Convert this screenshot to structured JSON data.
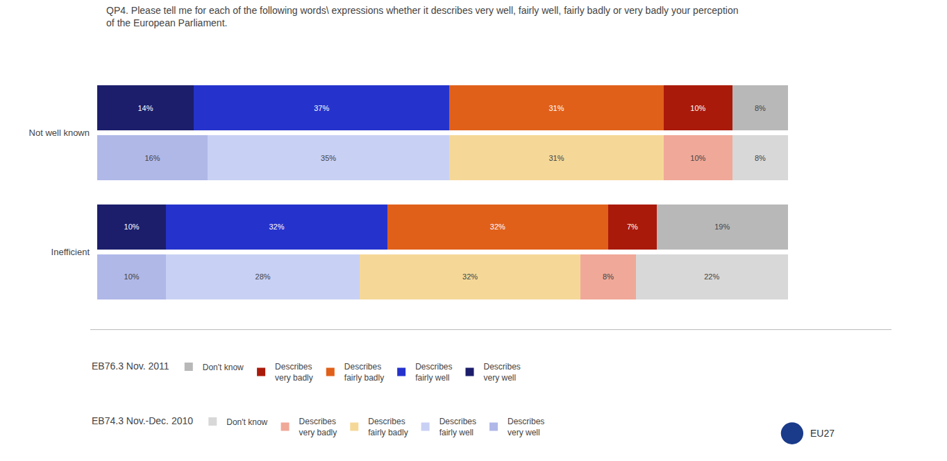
{
  "chart_data": {
    "type": "bar",
    "orientation": "horizontal",
    "stacked": true,
    "data_labels": true,
    "tick_labels": "y",
    "grid": false,
    "legend": "bottom",
    "title": "QP4. Please tell me for each of the following words\\ expressions whether it describes very well, fairly well, fairly badly or very badly your perception\nof the European Parliament.",
    "categories": [
      "Not well known",
      "Inefficient"
    ],
    "xlim": [
      -1,
      115
    ],
    "series": [
      {
        "name": "EB76.3 Nov. 2011",
        "segments": [
          {
            "name": "Describes\nvery well",
            "color": "#1c1e6b",
            "values": [
              14,
              10
            ],
            "value_labels": [
              "14%",
              "10%"
            ]
          },
          {
            "name": "Describes\nfairly well",
            "color": "#2533cc",
            "values": [
              37,
              32
            ],
            "value_labels": [
              "37%",
              "32%"
            ]
          },
          {
            "name": "Describes\nfairly badly",
            "color": "#e0601a",
            "values": [
              31,
              32
            ],
            "value_labels": [
              "31%",
              "32%"
            ]
          },
          {
            "name": "Describes\nvery badly",
            "color": "#aa1a0a",
            "values": [
              10,
              7
            ],
            "value_labels": [
              "10%",
              "7%"
            ]
          },
          {
            "name": "Don't know",
            "color": "#b8b8b8",
            "values": [
              8,
              19
            ],
            "value_labels": [
              "8%",
              "19%"
            ]
          }
        ]
      },
      {
        "name": "EB74.3 Nov.-Dec. 2010",
        "segments": [
          {
            "name": "Describes\nvery well",
            "color": "#b0b8e8",
            "values": [
              16,
              10
            ],
            "value_labels": [
              "16%",
              "10%"
            ]
          },
          {
            "name": "Describes\nfairly well",
            "color": "#c8d0f4",
            "values": [
              35,
              28
            ],
            "value_labels": [
              "35%",
              "28%"
            ]
          },
          {
            "name": "Describes\nfairly badly",
            "color": "#f5d898",
            "values": [
              31,
              32
            ],
            "value_labels": [
              "31%",
              "32%"
            ]
          },
          {
            "name": "Describes\nvery badly",
            "color": "#f0a898",
            "values": [
              10,
              8
            ],
            "value_labels": [
              "10%",
              "8%"
            ]
          },
          {
            "name": "Don't know",
            "color": "#d8d8d8",
            "values": [
              8,
              22
            ],
            "value_labels": [
              "8%",
              "22%"
            ]
          }
        ]
      }
    ],
    "annotations": [
      "EU27"
    ]
  }
}
